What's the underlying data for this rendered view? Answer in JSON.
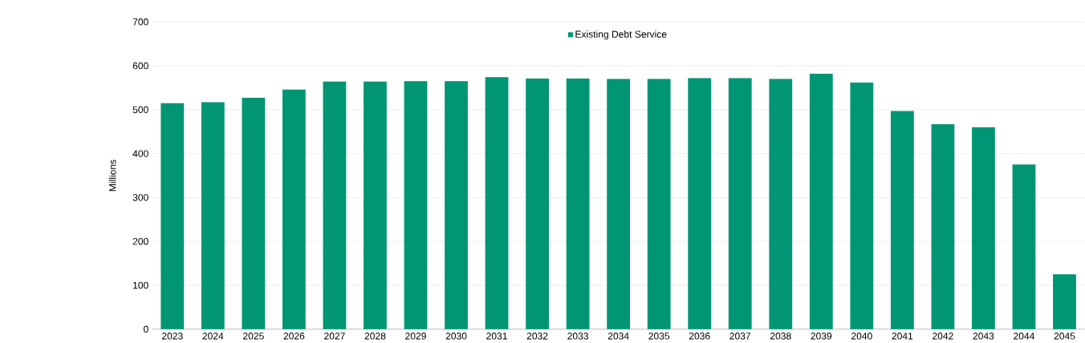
{
  "chart_data": {
    "type": "bar",
    "ylabel": "Millions",
    "categories": [
      "2023",
      "2024",
      "2025",
      "2026",
      "2027",
      "2028",
      "2029",
      "2030",
      "2031",
      "2032",
      "2033",
      "2034",
      "2035",
      "2036",
      "2037",
      "2038",
      "2039",
      "2040",
      "2041",
      "2042",
      "2043",
      "2044",
      "2045"
    ],
    "series": [
      {
        "name": "Existing Debt Service",
        "color": "#009673",
        "values": [
          515,
          517,
          527,
          546,
          564,
          564,
          565,
          565,
          574,
          571,
          571,
          570,
          570,
          572,
          572,
          570,
          582,
          562,
          497,
          467,
          460,
          375,
          125
        ]
      }
    ],
    "ylim": [
      0,
      700
    ],
    "yticks": [
      0,
      100,
      200,
      300,
      400,
      500,
      600,
      700
    ],
    "grid": "y",
    "legend": "top"
  }
}
